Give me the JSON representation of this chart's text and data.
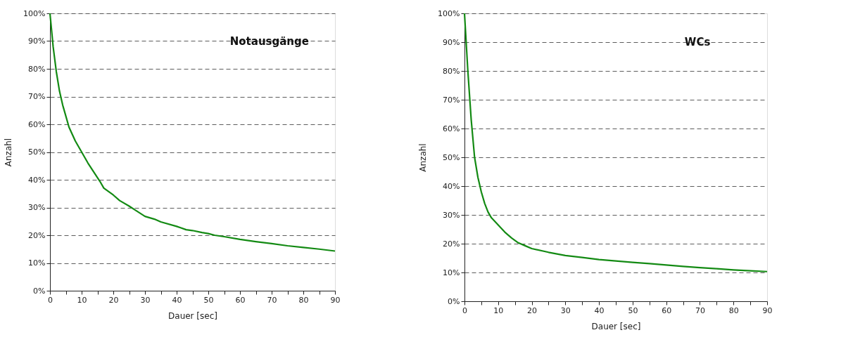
{
  "chart_data": [
    {
      "type": "line",
      "title": "Notausgänge",
      "xlabel": "Dauer [sec]",
      "ylabel": "Anzahl",
      "grid": "y",
      "marker": "none",
      "line_style": "solid",
      "xlim": [
        0,
        90
      ],
      "ylim": [
        0,
        100
      ],
      "xticks": [
        0,
        {
          "value": 5,
          "label": null
        },
        10,
        {
          "value": 15,
          "label": null
        },
        20,
        {
          "value": 25,
          "label": null
        },
        30,
        {
          "value": 35,
          "label": null
        },
        40,
        {
          "value": 45,
          "label": null
        },
        50,
        {
          "value": 55,
          "label": null
        },
        60,
        {
          "value": 65,
          "label": null
        },
        70,
        {
          "value": 75,
          "label": null
        },
        80,
        {
          "value": 85,
          "label": null
        },
        90
      ],
      "yticks": [
        {
          "value": 0,
          "label": "0%"
        },
        {
          "value": 10,
          "label": "10%"
        },
        {
          "value": 20,
          "label": "20%"
        },
        {
          "value": 30,
          "label": "30%"
        },
        {
          "value": 40,
          "label": "40%"
        },
        {
          "value": 50,
          "label": "50%"
        },
        {
          "value": 60,
          "label": "60%"
        },
        {
          "value": 70,
          "label": "70%"
        },
        {
          "value": 80,
          "label": "80%"
        },
        {
          "value": 90,
          "label": "90%"
        },
        {
          "value": 100,
          "label": "100%"
        }
      ],
      "x": [
        0,
        1,
        2,
        3,
        4,
        5,
        6,
        8,
        10,
        12,
        14,
        16,
        17,
        20,
        22,
        25,
        27,
        30,
        33,
        35,
        40,
        43,
        45,
        48,
        50,
        52,
        55,
        60,
        65,
        70,
        75,
        80,
        85,
        90
      ],
      "series": [
        {
          "color": "#138a13",
          "values": [
            100,
            88,
            79,
            72,
            67,
            63,
            59,
            54,
            50,
            46,
            42.5,
            39,
            37,
            34.5,
            32.5,
            30.5,
            29,
            26.8,
            25.8,
            24.8,
            23.2,
            22,
            21.7,
            21,
            20.6,
            20,
            19.5,
            18.5,
            17.7,
            17,
            16.2,
            15.6,
            15,
            14.3
          ]
        }
      ]
    },
    {
      "type": "line",
      "title": "WCs",
      "xlabel": "Dauer [sec]",
      "ylabel": "Anzahl",
      "grid": "y",
      "marker": "none",
      "line_style": "solid",
      "xlim": [
        0,
        90
      ],
      "ylim": [
        0,
        100
      ],
      "xticks": [
        0,
        {
          "value": 5,
          "label": null
        },
        10,
        {
          "value": 15,
          "label": null
        },
        20,
        {
          "value": 25,
          "label": null
        },
        30,
        {
          "value": 35,
          "label": null
        },
        40,
        {
          "value": 45,
          "label": null
        },
        50,
        {
          "value": 55,
          "label": null
        },
        60,
        {
          "value": 65,
          "label": null
        },
        70,
        {
          "value": 75,
          "label": null
        },
        80,
        {
          "value": 85,
          "label": null
        },
        90
      ],
      "yticks": [
        {
          "value": 0,
          "label": "0%"
        },
        {
          "value": 10,
          "label": "10%"
        },
        {
          "value": 20,
          "label": "20%"
        },
        {
          "value": 30,
          "label": "30%"
        },
        {
          "value": 40,
          "label": "40%"
        },
        {
          "value": 50,
          "label": "50%"
        },
        {
          "value": 60,
          "label": "60%"
        },
        {
          "value": 70,
          "label": "70%"
        },
        {
          "value": 80,
          "label": "80%"
        },
        {
          "value": 90,
          "label": "90%"
        },
        {
          "value": 100,
          "label": "100%"
        }
      ],
      "x": [
        0,
        1,
        2,
        3,
        4,
        5,
        6,
        7,
        8,
        10,
        12,
        14,
        16,
        18,
        20,
        25,
        30,
        35,
        40,
        45,
        50,
        55,
        60,
        65,
        70,
        75,
        80,
        85,
        90
      ],
      "series": [
        {
          "color": "#138a13",
          "values": [
            100,
            80,
            63,
            50,
            43,
            38,
            34,
            31,
            29,
            26.5,
            24,
            22,
            20.3,
            19.3,
            18.3,
            17,
            15.9,
            15.2,
            14.5,
            14,
            13.5,
            13.1,
            12.6,
            12.1,
            11.7,
            11.3,
            10.9,
            10.6,
            10.3
          ]
        }
      ]
    }
  ]
}
